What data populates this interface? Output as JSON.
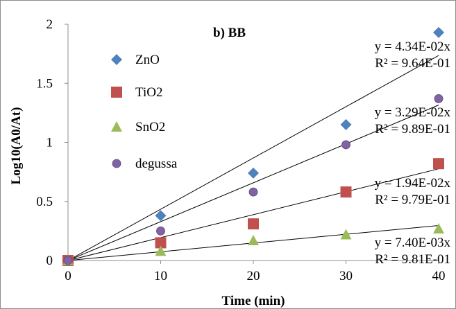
{
  "chart_data": {
    "type": "scatter",
    "title": "b) BB",
    "xlabel": "Time (min)",
    "ylabel": "Log10(A0/At)",
    "xlim": [
      0,
      40
    ],
    "ylim": [
      0,
      2
    ],
    "xticks": [
      "0",
      "10",
      "20",
      "30",
      "40"
    ],
    "yticks": [
      "0",
      "0.5",
      "1",
      "1.5",
      "2"
    ],
    "grid": false,
    "legend_position": "left",
    "x": [
      0,
      10,
      20,
      30,
      40
    ],
    "series": [
      {
        "name": "ZnO",
        "marker": "diamond",
        "color": "#4f81bd",
        "values": [
          0,
          0.38,
          0.74,
          1.15,
          1.93
        ],
        "slope": 0.0434,
        "trendline_equation": "y = 4.34E-02x",
        "trendline_r2": "R² = 9.64E-01"
      },
      {
        "name": "TiO2",
        "marker": "square",
        "color": "#c0504d",
        "values": [
          0,
          0.15,
          0.31,
          0.58,
          0.82
        ],
        "slope": 0.0194,
        "trendline_equation": "y = 1.94E-02x",
        "trendline_r2": "R² = 9.79E-01"
      },
      {
        "name": "SnO2",
        "marker": "triangle",
        "color": "#9bbb59",
        "values": [
          0,
          0.08,
          0.17,
          0.22,
          0.27
        ],
        "slope": 0.0074,
        "trendline_equation": "y = 7.40E-03x",
        "trendline_r2": "R² = 9.81E-01"
      },
      {
        "name": "degussa",
        "marker": "circle",
        "color": "#8064a2",
        "values": [
          0,
          0.25,
          0.58,
          0.98,
          1.37
        ],
        "slope": 0.0329,
        "trendline_equation": "y = 3.29E-02x",
        "trendline_r2": "R² = 9.89E-01"
      }
    ],
    "trendline_label_order": [
      0,
      3,
      1,
      2
    ]
  }
}
